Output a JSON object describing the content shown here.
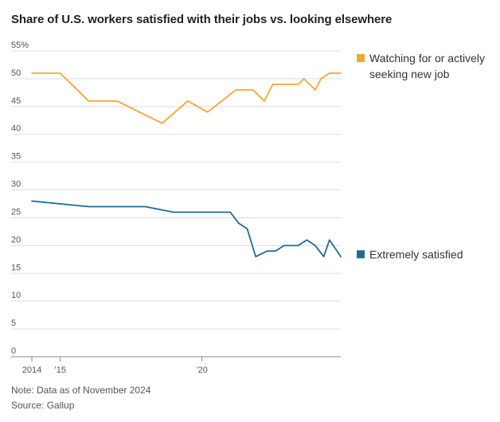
{
  "chart_data": {
    "type": "line",
    "title": "Share of U.S. workers satisfied with their jobs vs. looking elsewhere",
    "ylim": [
      0,
      55
    ],
    "xlim": [
      2014,
      2024.9
    ],
    "y_ticks": [
      {
        "value": 55,
        "label": "55%"
      },
      {
        "value": 50,
        "label": "50"
      },
      {
        "value": 45,
        "label": "45"
      },
      {
        "value": 40,
        "label": "40"
      },
      {
        "value": 35,
        "label": "35"
      },
      {
        "value": 30,
        "label": "30"
      },
      {
        "value": 25,
        "label": "25"
      },
      {
        "value": 20,
        "label": "20"
      },
      {
        "value": 15,
        "label": "15"
      },
      {
        "value": 10,
        "label": "10"
      },
      {
        "value": 5,
        "label": "5"
      },
      {
        "value": 0,
        "label": "0"
      }
    ],
    "x_ticks": [
      {
        "value": 2014,
        "label": "2014"
      },
      {
        "value": 2015,
        "label": "’15"
      },
      {
        "value": 2020,
        "label": "’20"
      }
    ],
    "grid": "horizontal",
    "legend_position": "right, at line ends",
    "series": [
      {
        "name": "Watching for or actively seeking new job",
        "legend_lines": [
          "Watching for or actively",
          "seeking new job"
        ],
        "color": "#F0A830",
        "x": [
          2014.0,
          2015.0,
          2016.0,
          2017.0,
          2018.6,
          2019.5,
          2020.2,
          2021.2,
          2021.8,
          2022.2,
          2022.5,
          2023.0,
          2023.4,
          2023.6,
          2024.0,
          2024.2,
          2024.5,
          2024.9
        ],
        "y": [
          51,
          51,
          46,
          46,
          42,
          46,
          44,
          48,
          48,
          46,
          49,
          49,
          49,
          50,
          48,
          50,
          51,
          51
        ]
      },
      {
        "name": "Extremely satisfied",
        "legend_lines": [
          "Extremely satisfied"
        ],
        "color": "#1E6C93",
        "x": [
          2014.0,
          2016.0,
          2018.0,
          2019.0,
          2021.0,
          2021.3,
          2021.6,
          2021.9,
          2022.3,
          2022.6,
          2022.9,
          2023.4,
          2023.7,
          2024.0,
          2024.3,
          2024.5,
          2024.9
        ],
        "y": [
          28,
          27,
          27,
          26,
          26,
          24,
          23,
          18,
          19,
          19,
          20,
          20,
          21,
          20,
          18,
          21,
          18
        ]
      }
    ]
  },
  "footer": {
    "note": "Note: Data as of November 2024",
    "source": "Source: Gallup"
  }
}
